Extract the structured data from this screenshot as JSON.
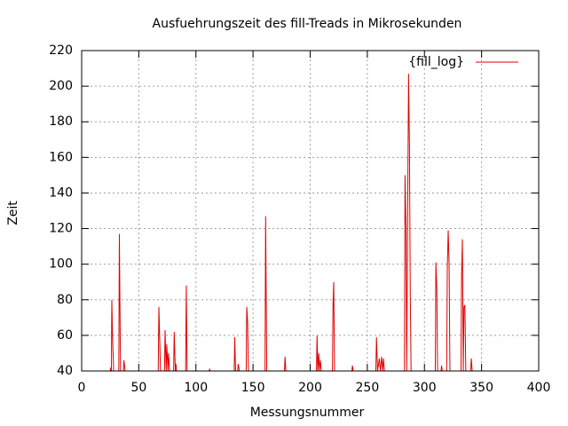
{
  "chart_data": {
    "type": "line",
    "title": "Ausfuehrungszeit des fill-Treads in Mikrosekunden",
    "xlabel": "Messungsnummer",
    "ylabel": "Zeit",
    "x": [
      1,
      25,
      25.6,
      26,
      26.4,
      27,
      28,
      32.5,
      33,
      34,
      36.5,
      37,
      38,
      67,
      67.6,
      68.3,
      69,
      72.5,
      73,
      74,
      74.5,
      75.5,
      76,
      77,
      80.5,
      81,
      82,
      82.5,
      83,
      91,
      91.6,
      92.3,
      111.5,
      112,
      112.5,
      133.5,
      134,
      134.7,
      136.5,
      137,
      138,
      144,
      144.5,
      145.2,
      146,
      160.5,
      161,
      162,
      177.5,
      178,
      178.7,
      205.5,
      206,
      206.7,
      207.5,
      208.2,
      209,
      209.7,
      219.5,
      220,
      220.6,
      221.3,
      236.5,
      237,
      237.6,
      257.5,
      258,
      259,
      260.5,
      261.5,
      262.5,
      263.5,
      264.2,
      265,
      282.5,
      283,
      283.8,
      284.5,
      285.3,
      286.1,
      286.9,
      287.6,
      288.3,
      309.5,
      310,
      310.8,
      311.5,
      314.5,
      315,
      315.6,
      319.5,
      320,
      320.8,
      321.6,
      322.3,
      332,
      332.5,
      333.2,
      334,
      334.6,
      335.4,
      336.2,
      340.5,
      341,
      341.8,
      345
    ],
    "series": [
      {
        "name": "{fill_log}",
        "color": "#e00000",
        "values": [
          40,
          40,
          42,
          40,
          80,
          60,
          40,
          40,
          117,
          40,
          40,
          46,
          40,
          40,
          76,
          58,
          40,
          40,
          63,
          40,
          55,
          40,
          50,
          40,
          40,
          62,
          40,
          44,
          40,
          40,
          88,
          40,
          40,
          41,
          40,
          40,
          59,
          40,
          40,
          44,
          40,
          40,
          76,
          68,
          40,
          40,
          127,
          40,
          40,
          48,
          40,
          40,
          60,
          40,
          50,
          40,
          46,
          40,
          40,
          77,
          90,
          40,
          40,
          43,
          40,
          40,
          59,
          40,
          47,
          40,
          48,
          40,
          47,
          40,
          40,
          150,
          122,
          40,
          124,
          207,
          165,
          82,
          40,
          40,
          101,
          86,
          40,
          40,
          43,
          40,
          40,
          98,
          119,
          100,
          40,
          40,
          94,
          114,
          40,
          76,
          77,
          40,
          40,
          47,
          40,
          40
        ]
      }
    ],
    "xlim": [
      0,
      400
    ],
    "xticks": [
      0,
      50,
      100,
      150,
      200,
      250,
      300,
      350,
      400
    ],
    "ylim": [
      40,
      220
    ],
    "yticks": [
      40,
      60,
      80,
      100,
      120,
      140,
      160,
      180,
      200,
      220
    ],
    "grid": true,
    "legend": "top-right"
  }
}
